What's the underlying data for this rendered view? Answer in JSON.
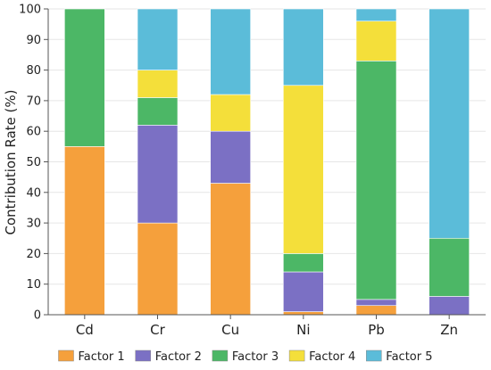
{
  "chart_data": {
    "type": "bar",
    "stacked": true,
    "categories": [
      "Cd",
      "Cr",
      "Cu",
      "Ni",
      "Pb",
      "Zn"
    ],
    "series": [
      {
        "name": "Factor 1",
        "color": "#F5A03C",
        "values": [
          55,
          30,
          43,
          1,
          3,
          0
        ]
      },
      {
        "name": "Factor 2",
        "color": "#7B70C4",
        "values": [
          0,
          32,
          17,
          13,
          2,
          6
        ]
      },
      {
        "name": "Factor 3",
        "color": "#4CB766",
        "values": [
          45,
          9,
          0,
          6,
          78,
          19
        ]
      },
      {
        "name": "Factor 4",
        "color": "#F4DF3A",
        "values": [
          0,
          9,
          12,
          55,
          13,
          0
        ]
      },
      {
        "name": "Factor 5",
        "color": "#5BBCD9",
        "values": [
          0,
          20,
          28,
          25,
          4,
          75
        ]
      }
    ],
    "ylabel": "Contribution Rate (%)",
    "xlabel": "",
    "ylim": [
      0,
      100
    ],
    "yticks": [
      0,
      10,
      20,
      30,
      40,
      50,
      60,
      70,
      80,
      90,
      100
    ],
    "grid": true,
    "legend_position": "bottom"
  }
}
